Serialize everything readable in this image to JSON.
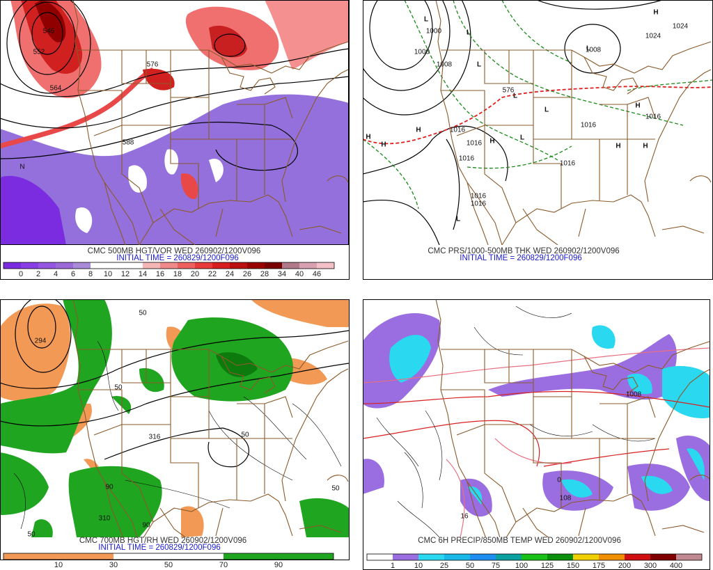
{
  "panels": [
    {
      "caption": "CMC 500MB HGT/VOR WED 260902/1200V096",
      "initial_time": "INITIAL TIME = 260829/1200F096",
      "colorbar": {
        "labels": [
          "0",
          "2",
          "4",
          "6",
          "8",
          "10",
          "12",
          "14",
          "16",
          "18",
          "20",
          "22",
          "24",
          "26",
          "28",
          "34",
          "40",
          "46"
        ],
        "colors": [
          "#7b2be0",
          "#8a3ee6",
          "#9455e0",
          "#9c6ad8",
          "#a98ad9",
          "#ffffff",
          "#ffffff",
          "#ffffff",
          "#f7b6b6",
          "#f08a8a",
          "#ee6060",
          "#e83a3a",
          "#d81e1e",
          "#bb0f0f",
          "#990000",
          "#7a0000",
          "#b07a8a",
          "#d8a0b0",
          "#f4c0c8"
        ]
      },
      "map_labels": [
        "546",
        "552",
        "576",
        "564",
        "588",
        "N"
      ]
    },
    {
      "caption": "CMC PRS/1000-500MB THK WED 260902/1200V096",
      "initial_time": "INITIAL TIME = 260829/1200F096",
      "map_labels": [
        "L",
        "1000",
        "1000",
        "1008",
        "L",
        "L",
        "L",
        "L",
        "L",
        "L",
        "L",
        "H",
        "H",
        "H",
        "H",
        "H",
        "H",
        "H",
        "H",
        "1016",
        "1016",
        "1016",
        "1016",
        "1016",
        "1016",
        "1016",
        "1016",
        "1024",
        "1024",
        "1008",
        "576"
      ]
    },
    {
      "caption": "CMC 700MB HGT/RH WED 260902/1200V096",
      "initial_time": "INITIAL TIME = 260829/1200F096",
      "colorbar": {
        "labels": [
          "10",
          "30",
          "50",
          "70",
          "90"
        ],
        "colors": [
          "#f29a55",
          "#f29a55",
          "#f29a55",
          "#f29a55",
          "#ffffff",
          "#ffffff",
          "#ffffff",
          "#ffffff",
          "#1fa51f",
          "#1fa51f",
          "#1fa51f",
          "#1fa51f"
        ]
      },
      "map_labels": [
        "294",
        "50",
        "50",
        "50",
        "90",
        "310",
        "50",
        "90",
        "50",
        "316"
      ]
    },
    {
      "caption": "CMC 6H PRECIP/850MB TEMP WED 260902/1200V096",
      "colorbar": {
        "labels": [
          "1",
          "10",
          "25",
          "50",
          "75",
          "100",
          "125",
          "150",
          "175",
          "200",
          "300",
          "400"
        ],
        "colors": [
          "#ffffff",
          "#9a6ee0",
          "#2ad8f0",
          "#18b8e8",
          "#1e8ef0",
          "#0aa0a0",
          "#18c018",
          "#0a900a",
          "#f0d000",
          "#f09000",
          "#d01010",
          "#800000",
          "#c08890"
        ]
      },
      "map_labels": [
        "1008",
        "0",
        "108",
        "16"
      ]
    }
  ]
}
